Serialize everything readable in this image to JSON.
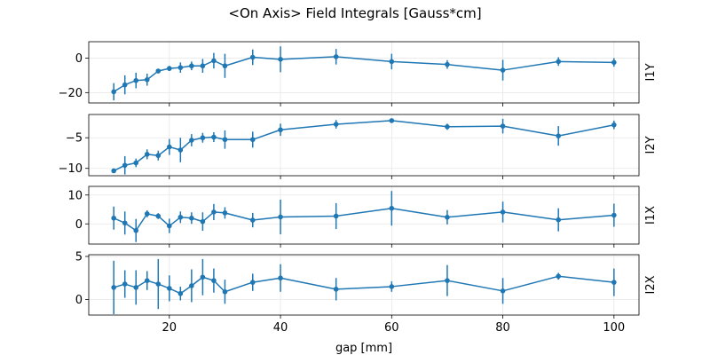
{
  "figure": {
    "title": "<On Axis> Field Integrals [Gauss*cm]",
    "xlabel": "gap [mm]"
  },
  "chart_data": {
    "type": "line",
    "title": "<On Axis> Field Integrals [Gauss*cm]",
    "xlabel": "gap [mm]",
    "xlim": [
      5.5,
      104.5
    ],
    "xticks": [
      20,
      40,
      60,
      80,
      100
    ],
    "grid": true,
    "color": "#1f77b4",
    "x": [
      10,
      12,
      14,
      16,
      18,
      20,
      22,
      24,
      26,
      28,
      30,
      35,
      40,
      50,
      60,
      70,
      80,
      90,
      100
    ],
    "panels": [
      {
        "name": "I1Y",
        "ylim": [
          -26,
          9.5
        ],
        "yticks": [
          0,
          -20
        ],
        "y": [
          -19.5,
          -15.5,
          -13,
          -12.5,
          -7.5,
          -6,
          -5.5,
          -4.5,
          -4.5,
          -1.5,
          -4.5,
          0.5,
          -0.7,
          0.8,
          -2,
          -3.7,
          -7,
          -2,
          -2.5
        ],
        "err": [
          5,
          5.5,
          4.5,
          3.5,
          1,
          1.5,
          3,
          2.5,
          4,
          4.5,
          7,
          4.5,
          7.5,
          4.5,
          4.5,
          2.5,
          6,
          2.5,
          2.5
        ]
      },
      {
        "name": "I2Y",
        "ylim": [
          -11.2,
          -1.2
        ],
        "yticks": [
          -5,
          -10
        ],
        "y": [
          -10.4,
          -9.5,
          -9.1,
          -7.7,
          -7.9,
          -6.5,
          -7,
          -5.4,
          -5,
          -4.9,
          -5.3,
          -5.3,
          -3.7,
          -2.8,
          -2.2,
          -3.2,
          -3.1,
          -4.7,
          -2.9
        ],
        "err": [
          0.2,
          1.5,
          0.7,
          0.8,
          0.8,
          1.3,
          2,
          1,
          0.8,
          0.8,
          1.5,
          1.3,
          1,
          0.7,
          0.3,
          0.5,
          1.2,
          1.6,
          0.7
        ]
      },
      {
        "name": "I1X",
        "ylim": [
          -7,
          13
        ],
        "yticks": [
          10,
          0
        ],
        "y": [
          2,
          0.3,
          -2.3,
          3.5,
          2.7,
          -0.7,
          2.3,
          2,
          0.8,
          4.1,
          3.8,
          1.3,
          2.4,
          2.7,
          5.4,
          2.3,
          4.1,
          1.4,
          3
        ],
        "err": [
          4,
          4,
          4,
          1.2,
          1,
          2.5,
          2,
          2,
          3.2,
          2.8,
          2,
          2.5,
          6,
          4.5,
          6,
          2.5,
          3.6,
          4,
          4
        ]
      },
      {
        "name": "I2X",
        "ylim": [
          -1.8,
          5.2
        ],
        "yticks": [
          5,
          0
        ],
        "y": [
          1.4,
          1.8,
          1.4,
          2.2,
          1.8,
          1.3,
          0.7,
          1.6,
          2.6,
          2.2,
          0.9,
          2,
          2.5,
          1.2,
          1.5,
          2.2,
          1,
          2.7,
          2
        ],
        "err": [
          3.1,
          1.6,
          2,
          1.1,
          2.9,
          1.5,
          0.8,
          1.9,
          2.1,
          1.4,
          1.4,
          1,
          1.6,
          1.3,
          0.6,
          1.8,
          1.5,
          0.4,
          1.6
        ]
      }
    ]
  }
}
